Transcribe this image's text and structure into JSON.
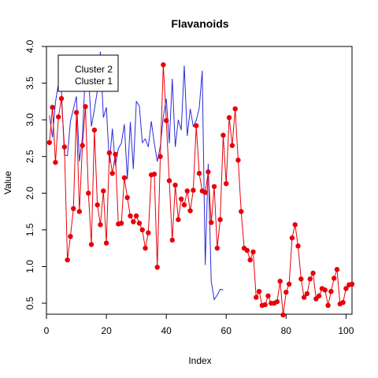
{
  "chart_data": {
    "type": "line",
    "title": "Flavanoids",
    "xlabel": "Index",
    "ylabel": "Value",
    "xlim": [
      0,
      102
    ],
    "ylim": [
      0.35,
      4.0
    ],
    "x_ticks": [
      0,
      20,
      40,
      60,
      80,
      100
    ],
    "y_ticks": [
      0.5,
      1.0,
      1.5,
      2.0,
      2.5,
      3.0,
      3.5,
      4.0
    ],
    "x_tick_labels": [
      "0",
      "20",
      "40",
      "60",
      "80",
      "100"
    ],
    "y_tick_labels": [
      "0.5",
      "1.0",
      "1.5",
      "2.0",
      "2.5",
      "3.0",
      "3.5",
      "4.0"
    ],
    "legend": {
      "position": "top-left",
      "entries": [
        "Cluster 2",
        "Cluster 1"
      ]
    },
    "series": [
      {
        "name": "Cluster 2",
        "color": "#e8000b",
        "markers": true,
        "values": [
          2.69,
          3.17,
          2.42,
          3.04,
          3.29,
          2.63,
          1.09,
          1.41,
          1.79,
          3.1,
          1.75,
          2.65,
          3.18,
          2.0,
          1.3,
          2.86,
          1.84,
          1.57,
          2.03,
          1.32,
          2.55,
          2.27,
          2.53,
          1.58,
          1.59,
          2.21,
          1.94,
          1.69,
          1.61,
          1.69,
          1.59,
          1.5,
          1.25,
          1.46,
          2.25,
          2.26,
          0.99,
          2.5,
          3.75,
          2.99,
          2.17,
          1.36,
          2.11,
          1.64,
          1.92,
          1.84,
          2.03,
          1.76,
          2.04,
          2.92,
          2.27,
          2.03,
          2.01,
          2.29,
          1.6,
          2.09,
          1.25,
          1.64,
          2.79,
          2.13,
          3.03,
          2.65,
          3.15,
          2.45,
          1.75,
          1.25,
          1.22,
          1.09,
          1.2,
          0.58,
          0.66,
          0.47,
          0.48,
          0.6,
          0.5,
          0.5,
          0.52,
          0.8,
          0.34,
          0.65,
          0.76,
          1.39,
          1.57,
          1.28,
          0.83,
          0.58,
          0.63,
          0.83,
          0.91,
          0.56,
          0.6,
          0.7,
          0.68,
          0.47,
          0.66,
          0.84,
          0.96,
          0.49,
          0.51,
          0.7,
          0.75,
          0.76
        ]
      },
      {
        "name": "Cluster 1",
        "color": "#2b2bd9",
        "markers": false,
        "values": [
          3.06,
          2.76,
          3.24,
          3.49,
          3.39,
          2.52,
          2.51,
          2.98,
          3.15,
          3.32,
          2.43,
          2.76,
          3.69,
          3.64,
          2.91,
          3.14,
          3.4,
          3.93,
          3.03,
          3.17,
          2.41,
          2.88,
          2.37,
          2.61,
          2.68,
          2.94,
          2.19,
          2.97,
          2.33,
          3.25,
          3.19,
          2.69,
          2.74,
          2.63,
          2.98,
          2.68,
          2.43,
          2.64,
          3.04,
          3.29,
          2.68,
          3.56,
          2.63,
          3.0,
          2.86,
          3.74,
          2.78,
          3.15,
          2.91,
          2.99,
          3.16,
          3.67,
          1.02,
          2.4,
          0.8,
          0.55,
          0.61,
          0.69,
          0.68
        ]
      }
    ]
  }
}
